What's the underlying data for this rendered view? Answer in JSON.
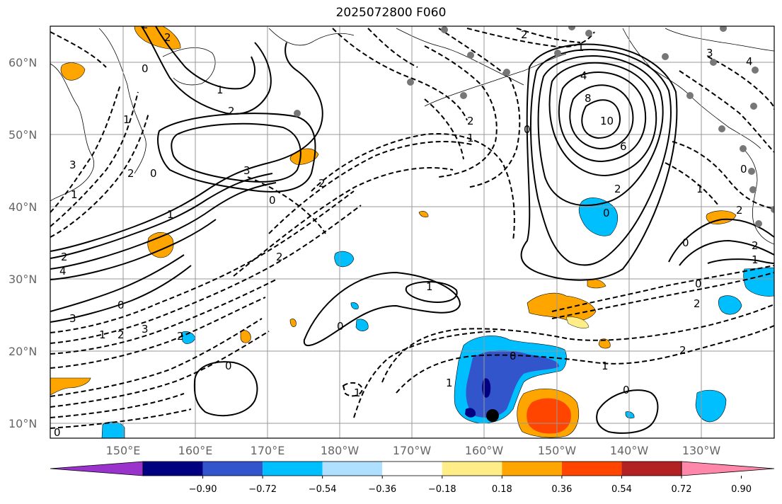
{
  "title": "2025072800 F060",
  "map": {
    "lat_labels": [
      "10°N",
      "20°N",
      "30°N",
      "40°N",
      "50°N",
      "60°N"
    ],
    "lon_labels": [
      "150°E",
      "160°E",
      "170°E",
      "180°W",
      "170°W",
      "160°W",
      "150°W",
      "140°W",
      "130°W"
    ]
  },
  "colorbar": {
    "colors": [
      "#9933cc",
      "#000080",
      "#3355cc",
      "#00bfff",
      "#b0e0ff",
      "#ffffff",
      "#ffee88",
      "#ffa500",
      "#ff4500",
      "#b22222",
      "#ff88aa"
    ],
    "tick_labels": [
      "−0.90",
      "−0.72",
      "−0.54",
      "−0.36",
      "−0.18",
      "0.18",
      "0.36",
      "0.54",
      "0.72",
      "0.90"
    ]
  },
  "contour_labels": {
    "solid": [
      "2",
      "4",
      "8",
      "10",
      "6",
      "3",
      "2",
      "1",
      "0",
      "1",
      "2",
      "0",
      "0",
      "2",
      "3",
      "4",
      "1",
      "1",
      "1",
      "1",
      "0"
    ],
    "dashed": [
      "2",
      "1",
      "2",
      "0",
      "2",
      "2",
      "3",
      "1",
      "2",
      "2",
      "3",
      "1",
      "0",
      "1",
      "2",
      "2",
      "1",
      "1",
      "2",
      "2",
      "1",
      "2",
      "1",
      "2",
      "1",
      "2",
      "1",
      "0",
      "4"
    ]
  }
}
